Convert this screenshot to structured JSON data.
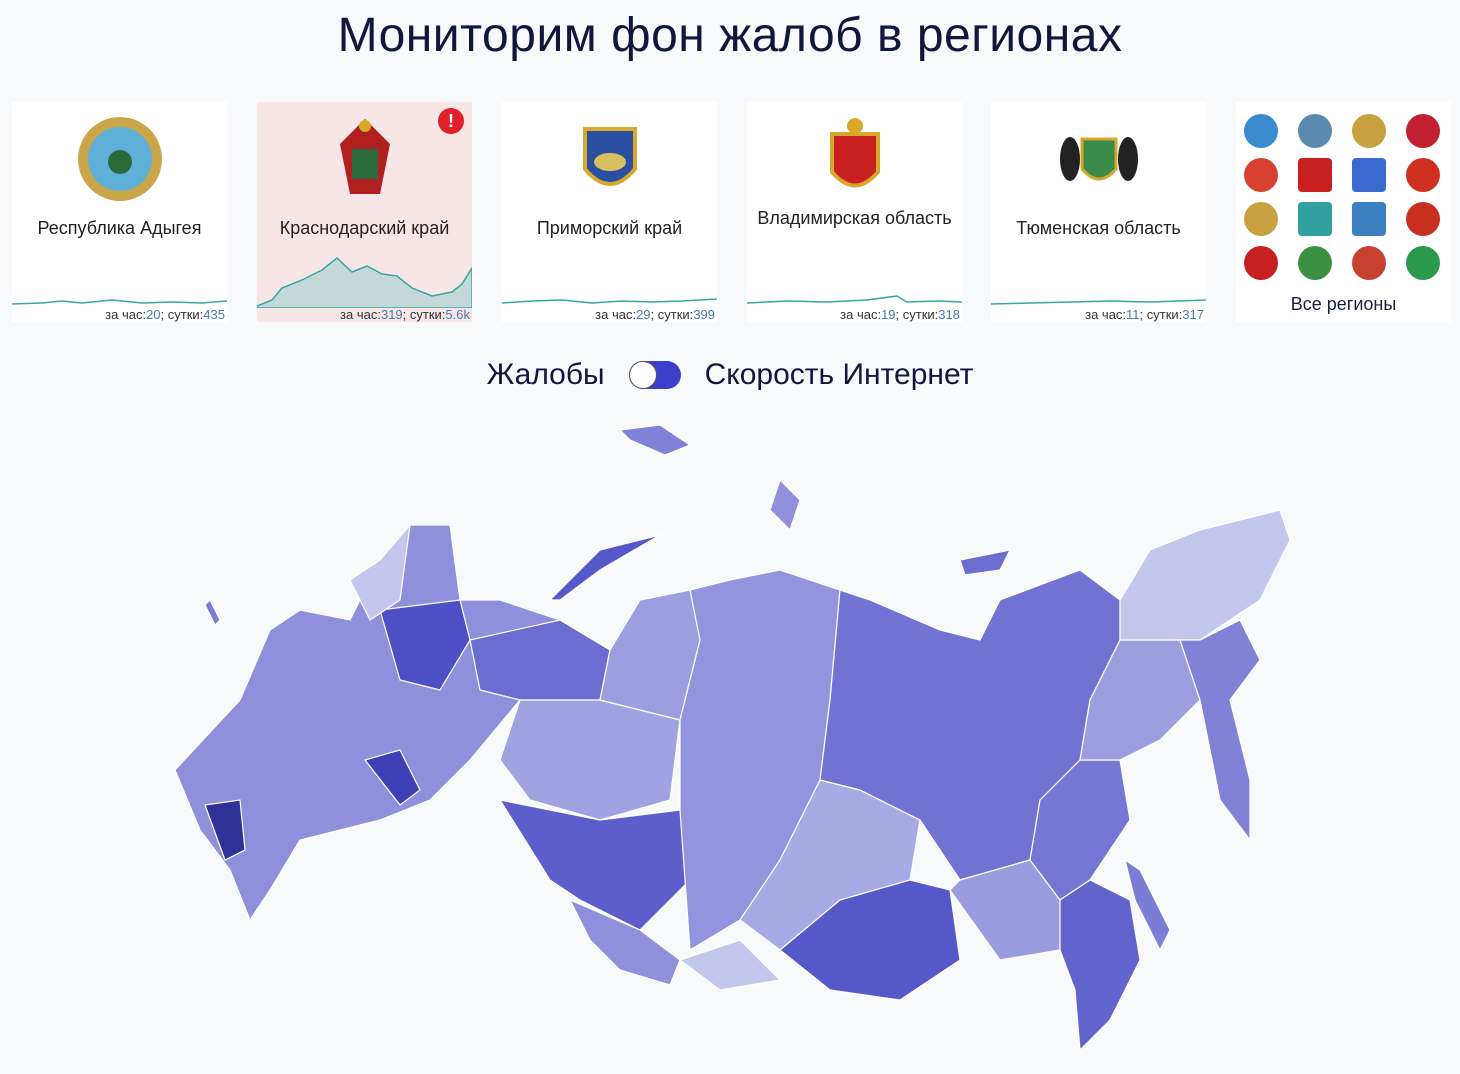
{
  "title": "Мониторим фон жалоб в регионах",
  "regions": [
    {
      "name": "Республика Адыгея",
      "hour_label": "за час:",
      "hour": "20",
      "day_label": "; сутки:",
      "day": "435",
      "alert": false
    },
    {
      "name": "Краснодарский край",
      "hour_label": "за час:",
      "hour": "319",
      "day_label": "; сутки:",
      "day": "5.6k",
      "alert": true
    },
    {
      "name": "Приморский край",
      "hour_label": "за час:",
      "hour": "29",
      "day_label": "; сутки:",
      "day": "399",
      "alert": false
    },
    {
      "name": "Владимирская область",
      "hour_label": "за час:",
      "hour": "19",
      "day_label": "; сутки:",
      "day": "318",
      "alert": false
    },
    {
      "name": "Тюменская область",
      "hour_label": "за час:",
      "hour": "11",
      "day_label": "; сутки:",
      "day": "317",
      "alert": false
    }
  ],
  "alert_icon": "!",
  "all_regions_label": "Все регионы",
  "toggle": {
    "left_label": "Жалобы",
    "right_label": "Скорость Интернет",
    "state": "right"
  },
  "colors": {
    "accent": "#3b3fc9",
    "alert_bg": "#f8e6e6",
    "map_light": "#c5c6ee",
    "map_dark": "#2e3196"
  }
}
